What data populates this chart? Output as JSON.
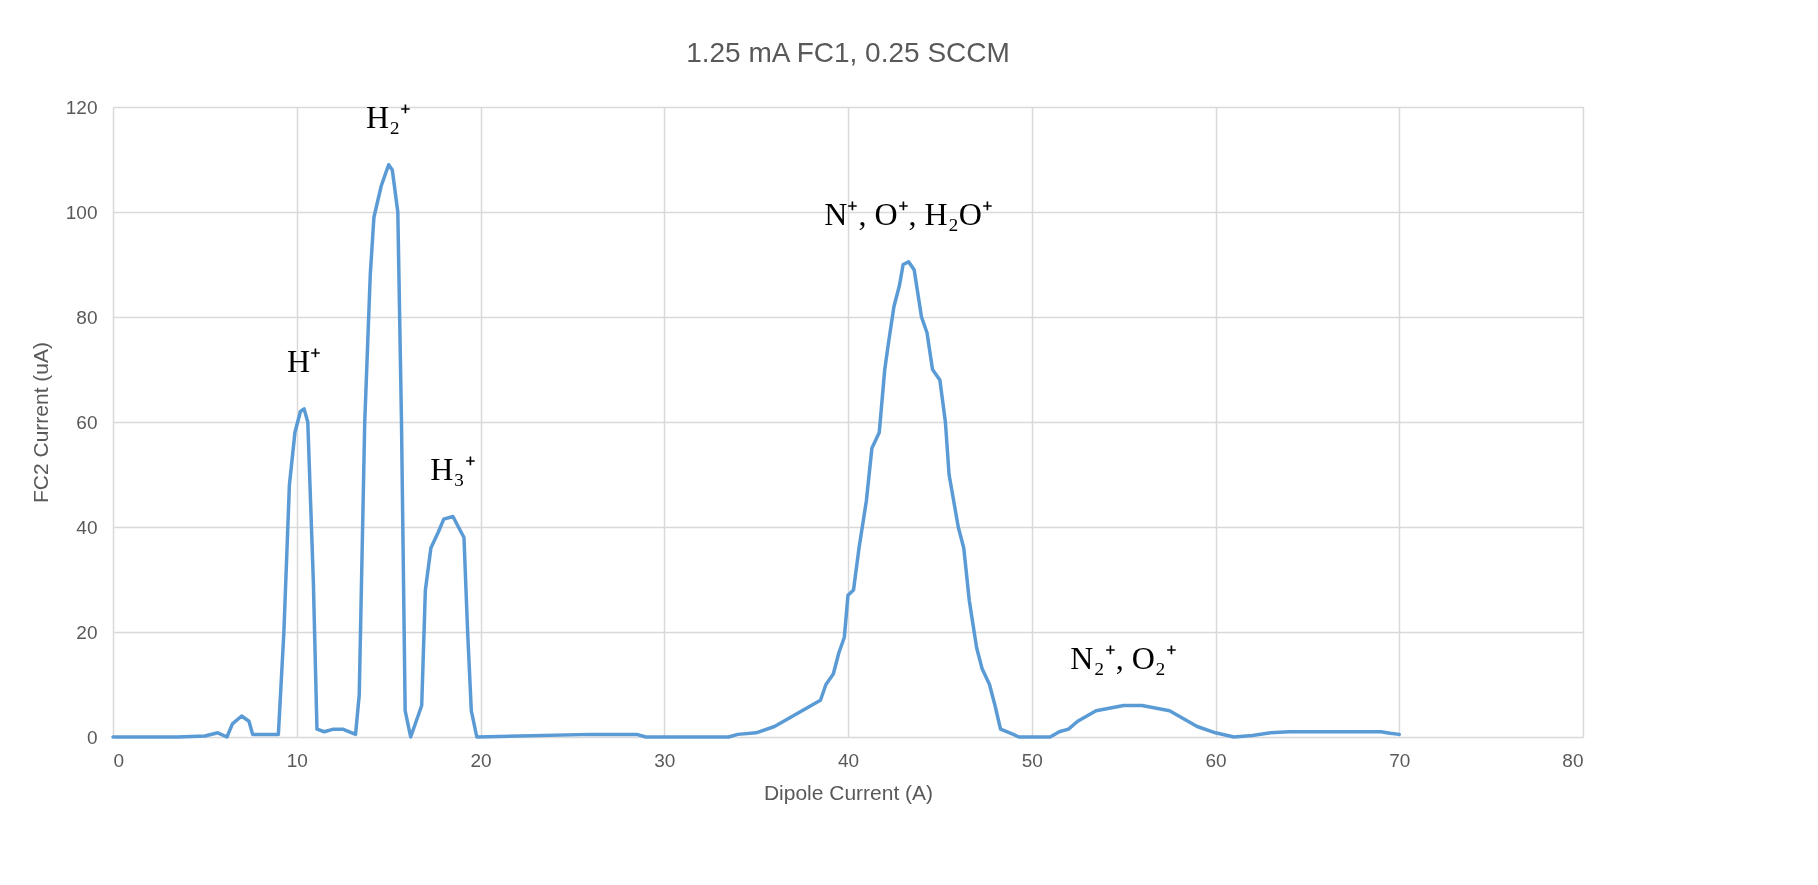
{
  "chart_data": {
    "type": "line",
    "title": "1.25 mA FC1, 0.25 SCCM",
    "xlabel": "Dipole Current (A)",
    "ylabel": "FC2 Current (uA)",
    "x": [
      0,
      3.5,
      5,
      5.7,
      6.2,
      6.5,
      7,
      7.4,
      7.6,
      9,
      9.3,
      9.6,
      9.9,
      10.2,
      10.4,
      10.6,
      10.9,
      11.1,
      11.5,
      12,
      12.5,
      13.2,
      13.4,
      13.7,
      14,
      14.2,
      14.6,
      15,
      15.2,
      15.5,
      15.7,
      15.9,
      16.2,
      16.8,
      17,
      17.3,
      17.7,
      18,
      18.5,
      18.8,
      19.1,
      19.3,
      19.5,
      19.8,
      26,
      28.5,
      29,
      33.5,
      34,
      35,
      36,
      37,
      38,
      38.5,
      38.8,
      39.2,
      39.5,
      39.8,
      40,
      40.3,
      40.6,
      41,
      41.3,
      41.7,
      42,
      42.2,
      42.5,
      42.8,
      43,
      43.3,
      43.6,
      44,
      44.3,
      44.6,
      45,
      45.3,
      45.5,
      46,
      46.3,
      46.6,
      47,
      47.3,
      47.7,
      48,
      48.3,
      49,
      49.3,
      51,
      51.5,
      52,
      52.5,
      53.5,
      55,
      56,
      57.5,
      58.5,
      59,
      60,
      61,
      62,
      63,
      64,
      69,
      69.5,
      70
    ],
    "series": [
      {
        "color": "#5b9bd5",
        "values": [
          0,
          0,
          0.2,
          0.8,
          0,
          2.5,
          4,
          3,
          0.5,
          0.5,
          20,
          48,
          58,
          62,
          62.5,
          60,
          30,
          1.5,
          1,
          1.5,
          1.5,
          0.5,
          8,
          60,
          88,
          99,
          105,
          109,
          108,
          100,
          60,
          5,
          0,
          6,
          28,
          36,
          39,
          41.5,
          42,
          40,
          38,
          20,
          5,
          0,
          0.5,
          0.5,
          0,
          0,
          0.5,
          0.8,
          2,
          4,
          6,
          7,
          10,
          12,
          16,
          19,
          27,
          28,
          36,
          45,
          55,
          58,
          70,
          75,
          82,
          86,
          90,
          90.5,
          89,
          80,
          77,
          70,
          68,
          60,
          50,
          40,
          36,
          26,
          17,
          13,
          10,
          6,
          1.5,
          0.5,
          0,
          0,
          1,
          1.5,
          3,
          5,
          6,
          6,
          5,
          3,
          2,
          0.8,
          0,
          0.3,
          0.8,
          1,
          1,
          0.7,
          0.5
        ]
      }
    ],
    "xlim": [
      0,
      80
    ],
    "xticks": [
      0,
      10,
      20,
      30,
      40,
      50,
      60,
      70,
      80
    ],
    "ylim": [
      0,
      120
    ],
    "yticks": [
      0,
      20,
      40,
      60,
      80,
      100,
      120
    ],
    "grid": true,
    "marker": "none",
    "line_style": "solid",
    "annotations": [
      {
        "text": "H⁺",
        "x": 10.4,
        "y": 62.5
      },
      {
        "text": "H₂⁺",
        "x": 15,
        "y": 109
      },
      {
        "text": "H₃⁺",
        "x": 18.5,
        "y": 42
      },
      {
        "text": "N⁺, O⁺, H₂O⁺",
        "x": 43.3,
        "y": 90.5
      },
      {
        "text": "N₂⁺, O₂⁺",
        "x": 55,
        "y": 6
      }
    ]
  }
}
